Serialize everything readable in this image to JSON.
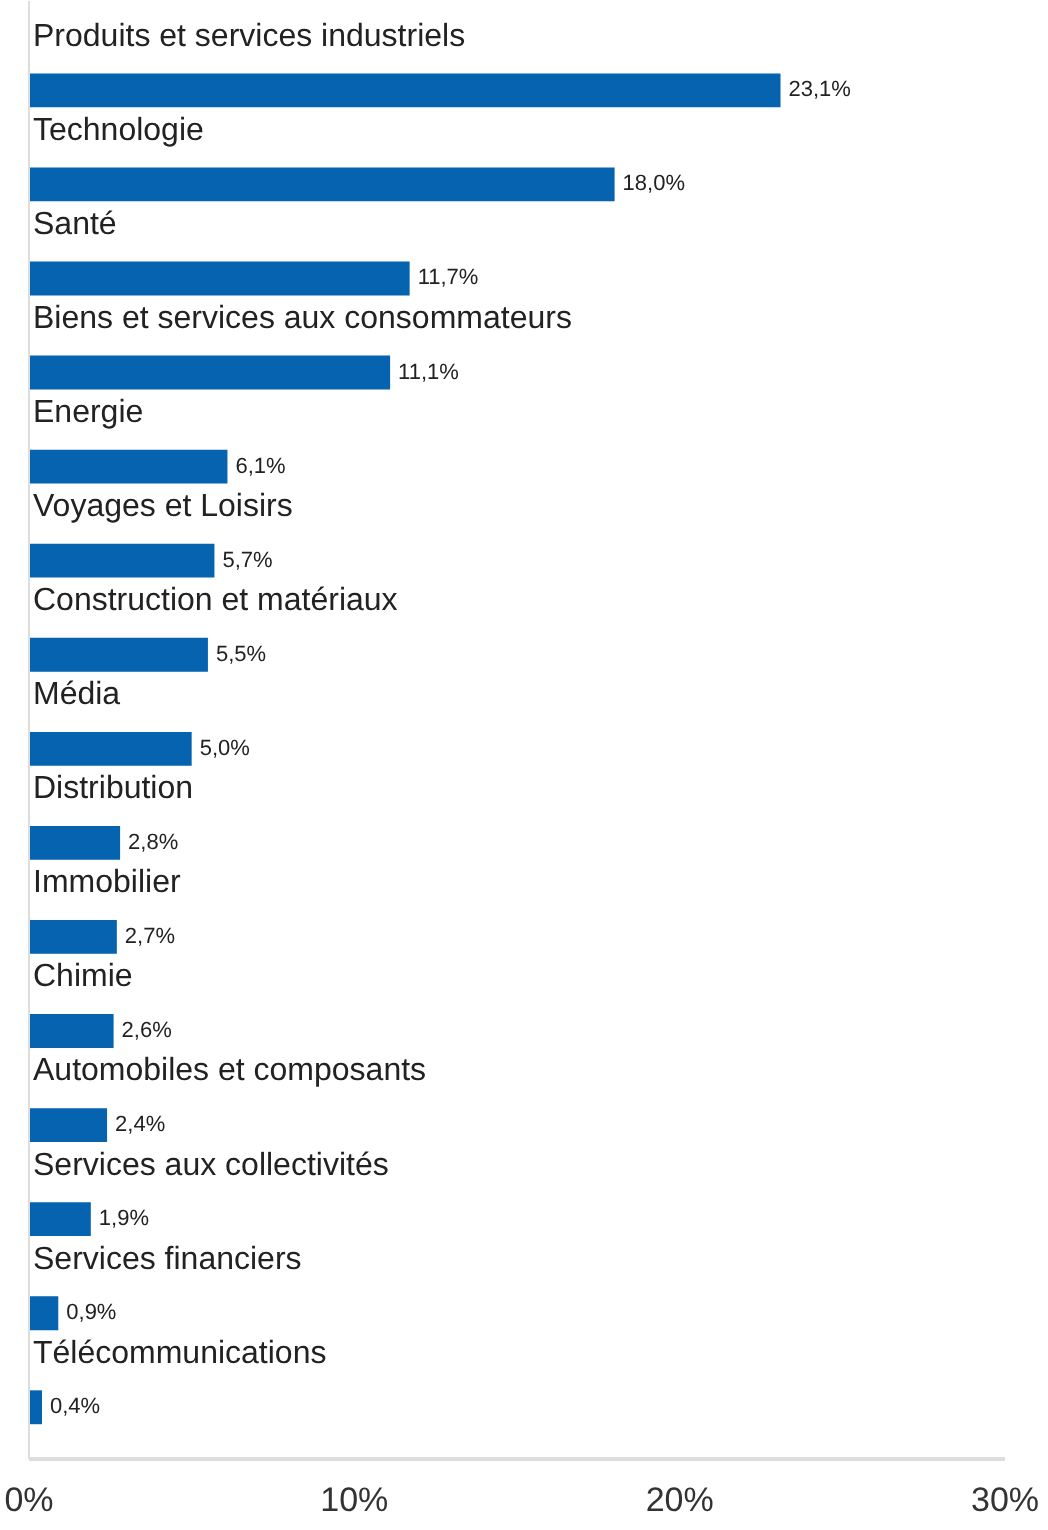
{
  "chart_data": {
    "type": "bar",
    "orientation": "horizontal",
    "categories": [
      "Produits et services industriels",
      "Technologie",
      "Santé",
      "Biens et services aux consommateurs",
      "Energie",
      "Voyages et Loisirs",
      "Construction et matériaux",
      "Média",
      "Distribution",
      "Immobilier",
      "Chimie",
      "Automobiles et composants",
      "Services aux collectivités",
      "Services financiers",
      "Télécommunications"
    ],
    "values": [
      23.1,
      18.0,
      11.7,
      11.1,
      6.1,
      5.7,
      5.5,
      5.0,
      2.8,
      2.7,
      2.6,
      2.4,
      1.9,
      0.9,
      0.4
    ],
    "value_labels": [
      "23,1%",
      "18,0%",
      "11,7%",
      "11,1%",
      "6,1%",
      "5,7%",
      "5,5%",
      "5,0%",
      "2,8%",
      "2,7%",
      "2,6%",
      "2,4%",
      "1,9%",
      "0,9%",
      "0,4%"
    ],
    "color": "#0563b0",
    "xlim": [
      0,
      30
    ],
    "xticks": [
      {
        "value": 0,
        "label": "0%"
      },
      {
        "value": 10,
        "label": "10%"
      },
      {
        "value": 20,
        "label": "20%"
      },
      {
        "value": 30,
        "label": "30%"
      }
    ],
    "grid": false,
    "tick_labels": "x"
  }
}
